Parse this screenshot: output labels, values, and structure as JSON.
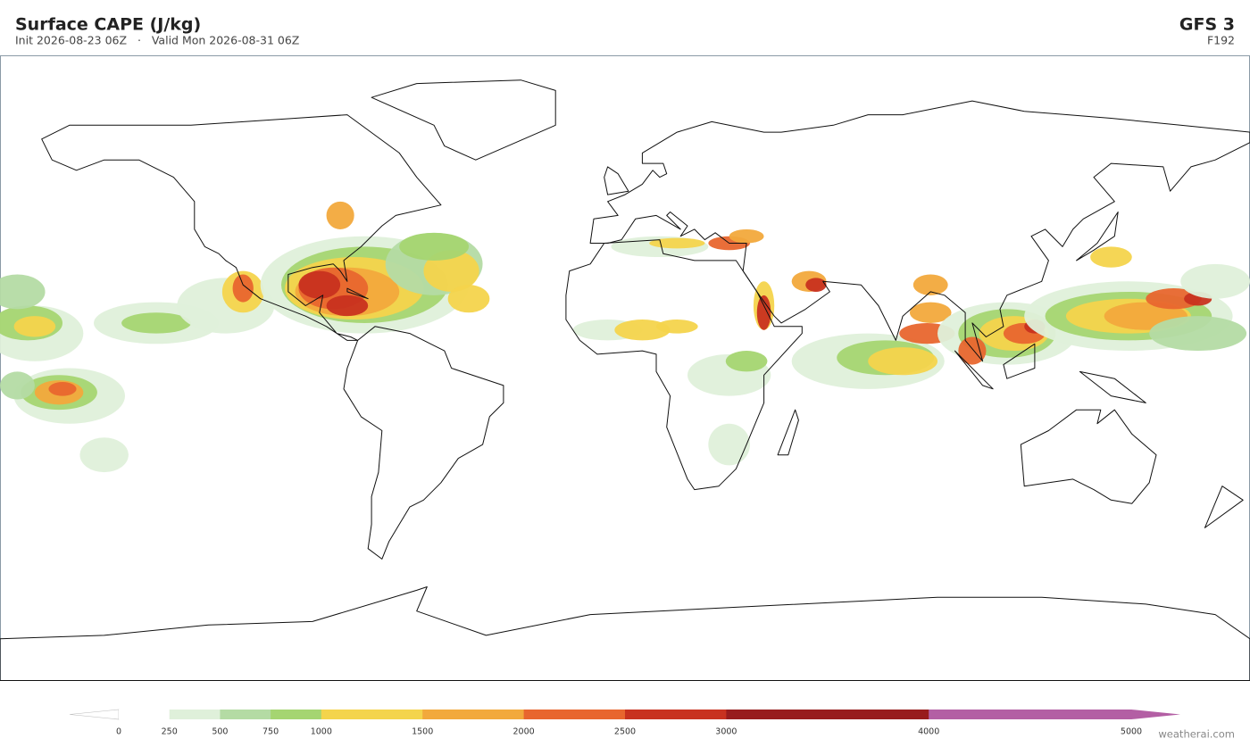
{
  "header": {
    "title": "Surface CAPE  (J/kg)",
    "subtitle": "Init 2026-08-23 06Z   ·   Valid Mon 2026-08-31 06Z",
    "model": "GFS  3",
    "forecast_hour": "F192"
  },
  "colorbar": {
    "levels": [
      0,
      250,
      500,
      750,
      1000,
      1500,
      2000,
      2500,
      3000,
      4000,
      5000
    ],
    "colors": [
      "#ffffff",
      "#dff0da",
      "#b4dba4",
      "#a5d571",
      "#f4d44c",
      "#f2a93c",
      "#e8662e",
      "#c8321f",
      "#981c1d",
      "#b35fa4"
    ],
    "under_color": "#ffffff",
    "over_color": "#b35fa4"
  },
  "credit": "weatherai.com"
}
